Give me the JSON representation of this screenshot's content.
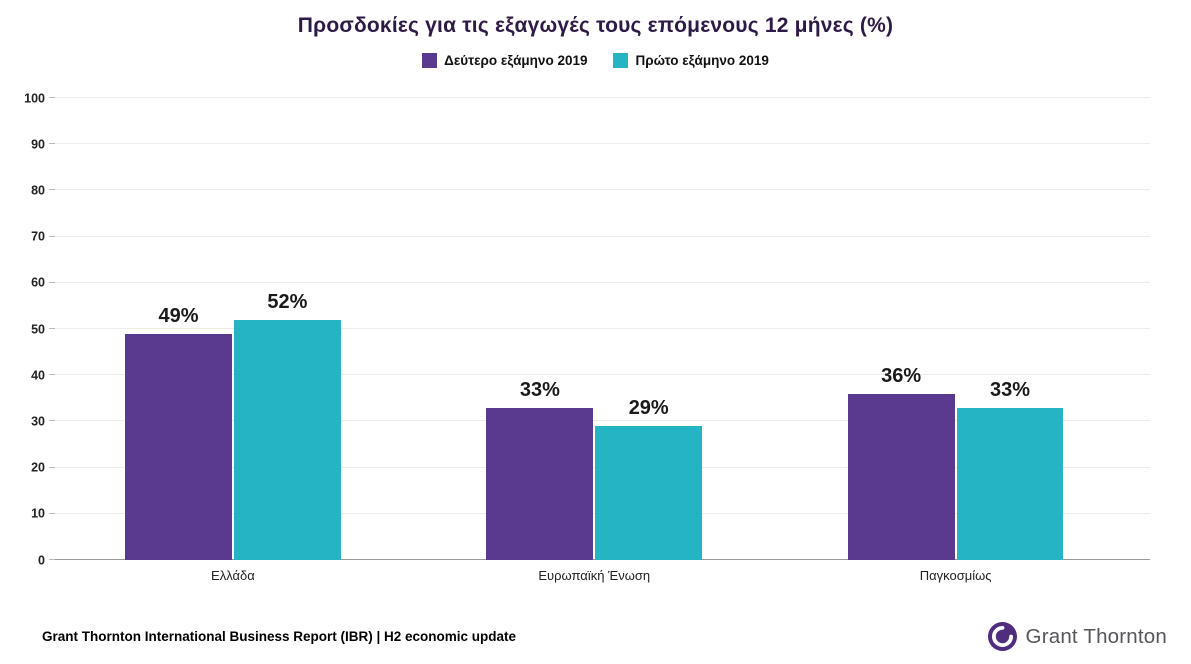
{
  "title": "Προσδοκίες για τις εξαγωγές τους επόμενους 12 μήνες (%)",
  "footer": "Grant Thornton International Business Report (IBR) | H2 economic update",
  "logo_text": "Grant Thornton",
  "colors": {
    "purple": "#5a3a8e",
    "teal": "#25b4c4",
    "logo_purple": "#4f2d7f"
  },
  "chart_data": {
    "type": "bar",
    "title": "Προσδοκίες για τις εξαγωγές τους επόμενους 12 μήνες (%)",
    "categories": [
      "Ελλάδα",
      "Ευρωπαϊκή Ένωση",
      "Παγκοσμίως"
    ],
    "series": [
      {
        "name": "Δεύτερο εξάμηνο 2019",
        "color": "#5a3a8e",
        "values": [
          49,
          33,
          36
        ]
      },
      {
        "name": "Πρώτο εξάμηνο 2019",
        "color": "#25b4c4",
        "values": [
          52,
          29,
          33
        ]
      }
    ],
    "value_suffix": "%",
    "xlabel": "",
    "ylabel": "",
    "ylim": [
      0,
      100
    ],
    "ytick": 10,
    "grid": true,
    "legend_position": "top"
  }
}
